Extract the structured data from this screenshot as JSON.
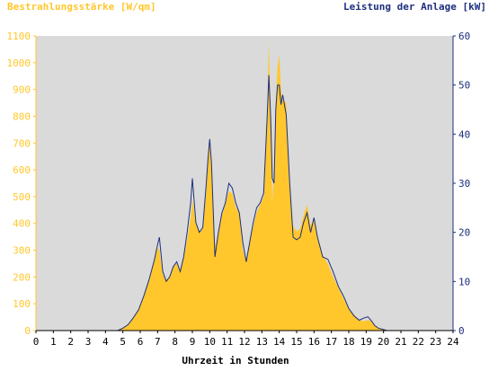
{
  "chart_data": {
    "type": "area",
    "ylabel_left": "Bestrahlungsstärke [W/qm]",
    "ylabel_right": "Leistung der Anlage [kW]",
    "xlabel": "Uhrzeit in Stunden",
    "xlim": [
      0,
      24
    ],
    "ylim_left": [
      0,
      1100
    ],
    "ylim_right": [
      0,
      60
    ],
    "x_ticks": [
      "0",
      "1",
      "2",
      "3",
      "4",
      "5",
      "6",
      "7",
      "8",
      "9",
      "10",
      "11",
      "12",
      "13",
      "14",
      "15",
      "16",
      "17",
      "18",
      "19",
      "20",
      "21",
      "22",
      "23",
      "24"
    ],
    "y_ticks_left": [
      "0",
      "100",
      "200",
      "300",
      "400",
      "500",
      "600",
      "700",
      "800",
      "900",
      "1000",
      "1100"
    ],
    "y_ticks_right": [
      "0",
      "10",
      "20",
      "30",
      "40",
      "50",
      "60"
    ],
    "grid": false,
    "colors": {
      "plot_background": "#dadada",
      "irradiance_fill": "#ffc72c",
      "power_line": "#1d2f7d"
    },
    "series": [
      {
        "name": "Bestrahlungsstärke",
        "axis": "left",
        "style": "area",
        "x": [
          0,
          4.7,
          5.0,
          5.3,
          5.6,
          5.9,
          6.2,
          6.5,
          6.8,
          7.0,
          7.1,
          7.3,
          7.5,
          7.7,
          7.9,
          8.1,
          8.3,
          8.5,
          8.7,
          8.9,
          9.0,
          9.2,
          9.4,
          9.6,
          9.8,
          9.9,
          10.0,
          10.1,
          10.3,
          10.5,
          10.7,
          10.9,
          11.1,
          11.3,
          11.5,
          11.7,
          11.9,
          12.1,
          12.3,
          12.5,
          12.7,
          12.9,
          13.1,
          13.3,
          13.4,
          13.5,
          13.6,
          13.7,
          13.8,
          13.9,
          14.0,
          14.1,
          14.2,
          14.4,
          14.6,
          14.8,
          15.0,
          15.2,
          15.4,
          15.6,
          15.8,
          16.0,
          16.2,
          16.5,
          16.8,
          17.1,
          17.4,
          17.7,
          18.0,
          18.3,
          18.6,
          18.9,
          19.1,
          19.3,
          19.5,
          19.7,
          20.0,
          20.2,
          20.5,
          21.0,
          24
        ],
        "values": [
          0,
          0,
          10,
          20,
          50,
          80,
          130,
          190,
          260,
          310,
          300,
          210,
          190,
          200,
          240,
          250,
          220,
          270,
          340,
          420,
          490,
          400,
          370,
          380,
          520,
          640,
          720,
          620,
          310,
          370,
          430,
          470,
          520,
          510,
          460,
          440,
          300,
          260,
          330,
          390,
          440,
          470,
          500,
          780,
          1080,
          820,
          480,
          600,
          850,
          980,
          1030,
          900,
          860,
          850,
          560,
          390,
          370,
          380,
          430,
          470,
          390,
          420,
          350,
          280,
          250,
          200,
          160,
          120,
          80,
          60,
          40,
          35,
          40,
          35,
          20,
          10,
          5,
          0,
          0,
          0,
          0
        ]
      },
      {
        "name": "Leistung der Anlage",
        "axis": "right",
        "style": "line",
        "x": [
          0,
          4.7,
          5.0,
          5.3,
          5.6,
          5.9,
          6.2,
          6.5,
          6.8,
          7.0,
          7.1,
          7.3,
          7.5,
          7.7,
          7.9,
          8.1,
          8.3,
          8.5,
          8.7,
          8.9,
          9.0,
          9.2,
          9.4,
          9.6,
          9.8,
          9.9,
          10.0,
          10.1,
          10.3,
          10.5,
          10.7,
          10.9,
          11.1,
          11.3,
          11.5,
          11.7,
          11.9,
          12.1,
          12.3,
          12.5,
          12.7,
          12.9,
          13.1,
          13.3,
          13.4,
          13.5,
          13.6,
          13.7,
          13.8,
          13.9,
          14.0,
          14.1,
          14.2,
          14.4,
          14.6,
          14.8,
          15.0,
          15.2,
          15.4,
          15.6,
          15.8,
          16.0,
          16.2,
          16.5,
          16.8,
          17.1,
          17.4,
          17.7,
          18.0,
          18.3,
          18.6,
          18.9,
          19.1,
          19.3,
          19.5,
          19.7,
          20.0,
          20.2,
          20.5,
          21.0,
          24
        ],
        "values": [
          0,
          0,
          0.5,
          1.2,
          2.6,
          4.2,
          7,
          10.3,
          14.2,
          17.5,
          19,
          12,
          10,
          11,
          13,
          14,
          12,
          15,
          20,
          26,
          31,
          22,
          20,
          21,
          30,
          35,
          39,
          34,
          15,
          20,
          24,
          26,
          30,
          29,
          26,
          24,
          18,
          14,
          18,
          22,
          25,
          26,
          28,
          43,
          52,
          44,
          31,
          30,
          45,
          50,
          50,
          46,
          48,
          44,
          30,
          19,
          18.5,
          19,
          22,
          24,
          20,
          23,
          19,
          15,
          14.5,
          12,
          9,
          7,
          4.5,
          3,
          2.1,
          2.6,
          2.8,
          2,
          1,
          0.5,
          0.2,
          0,
          0,
          0,
          0
        ]
      }
    ]
  }
}
